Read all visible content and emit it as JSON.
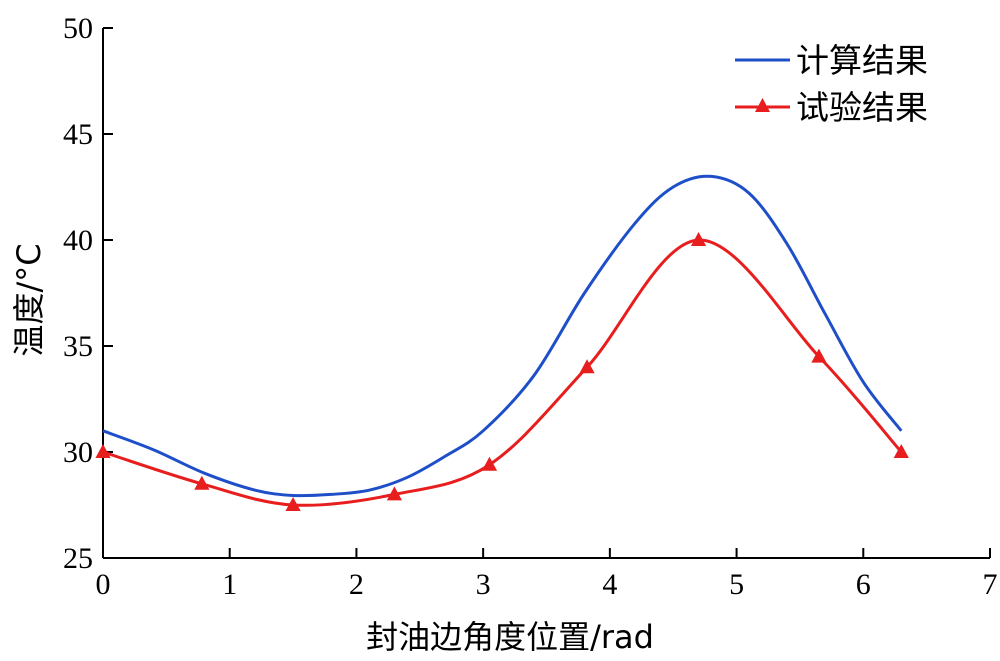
{
  "chart_data": {
    "type": "line",
    "xlabel": "封油边角度位置/rad",
    "ylabel": "温度/°C",
    "xlim": [
      0,
      7
    ],
    "ylim": [
      25,
      50
    ],
    "xticks": [
      0,
      1,
      2,
      3,
      4,
      5,
      6,
      7
    ],
    "yticks": [
      25,
      30,
      35,
      40,
      45,
      50
    ],
    "grid": false,
    "legend_position": "top-right",
    "series": [
      {
        "name": "计算结果",
        "color": "#1f4fc8",
        "marker": "none",
        "x": [
          0,
          0.4,
          0.8,
          1.2,
          1.5,
          1.8,
          2.1,
          2.4,
          2.7,
          3.0,
          3.4,
          3.8,
          4.2,
          4.5,
          4.8,
          5.1,
          5.4,
          5.7,
          6.0,
          6.3
        ],
        "y": [
          31.0,
          30.1,
          29.0,
          28.2,
          27.95,
          28.0,
          28.2,
          28.8,
          29.8,
          31.0,
          33.6,
          37.5,
          40.8,
          42.5,
          43.0,
          42.2,
          39.8,
          36.5,
          33.3,
          31.0
        ]
      },
      {
        "name": "试验结果",
        "color": "#e81e1e",
        "marker": "triangle",
        "x": [
          0,
          0.78,
          1.5,
          2.3,
          3.05,
          3.82,
          4.7,
          5.65,
          6.3
        ],
        "y": [
          30.0,
          28.5,
          27.5,
          28.0,
          29.4,
          34.0,
          40.0,
          34.5,
          30.0
        ]
      }
    ]
  }
}
